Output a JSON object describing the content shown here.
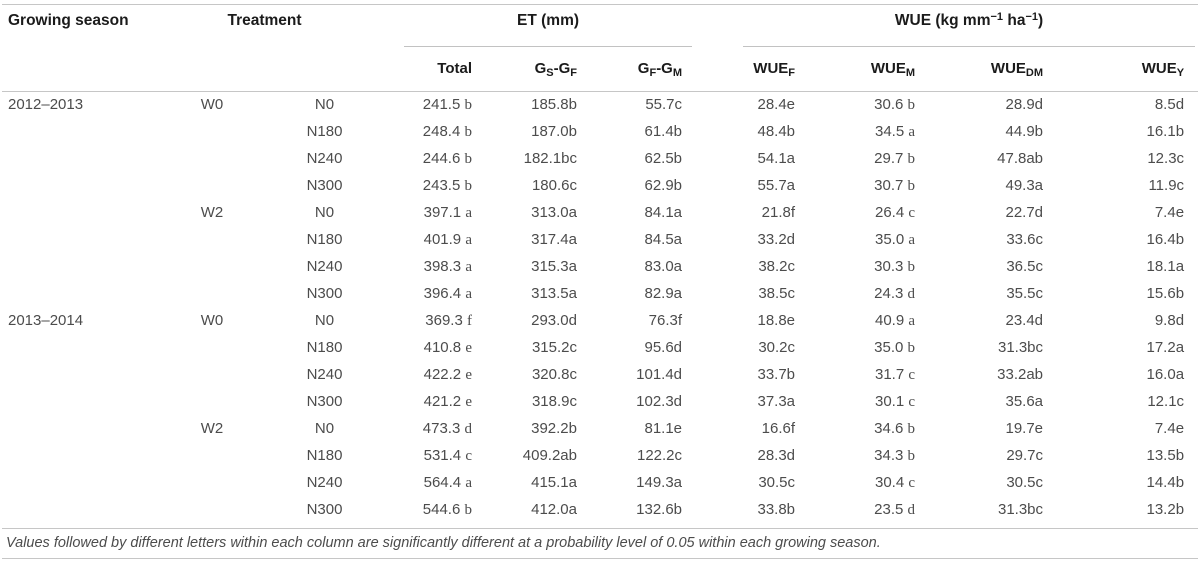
{
  "table": {
    "col_headers": {
      "growing_season": "Growing season",
      "treatment": "Treatment",
      "et_group": "ET (mm)",
      "wue_group": "WUE (kg mm^−1^ ha^−1^)",
      "sub": [
        "Total",
        "G_S_-G_F_",
        "G_F_-G_M_",
        "WUE_F_",
        "WUE_M_",
        "WUE_DM_",
        "WUE_Y_"
      ]
    },
    "rows": [
      {
        "season": "2012–2013",
        "w": "W0",
        "n": "N0",
        "values": [
          "241.5 b",
          "185.8b",
          "55.7c",
          "28.4e",
          "30.6 b",
          "28.9d",
          "8.5d"
        ]
      },
      {
        "season": "",
        "w": "",
        "n": "N180",
        "values": [
          "248.4 b",
          "187.0b",
          "61.4b",
          "48.4b",
          "34.5 a",
          "44.9b",
          "16.1b"
        ]
      },
      {
        "season": "",
        "w": "",
        "n": "N240",
        "values": [
          "244.6 b",
          "182.1bc",
          "62.5b",
          "54.1a",
          "29.7 b",
          "47.8ab",
          "12.3c"
        ]
      },
      {
        "season": "",
        "w": "",
        "n": "N300",
        "values": [
          "243.5 b",
          "180.6c",
          "62.9b",
          "55.7a",
          "30.7 b",
          "49.3a",
          "11.9c"
        ]
      },
      {
        "season": "",
        "w": "W2",
        "n": "N0",
        "values": [
          "397.1 a",
          "313.0a",
          "84.1a",
          "21.8f",
          "26.4 c",
          "22.7d",
          "7.4e"
        ]
      },
      {
        "season": "",
        "w": "",
        "n": "N180",
        "values": [
          "401.9 a",
          "317.4a",
          "84.5a",
          "33.2d",
          "35.0 a",
          "33.6c",
          "16.4b"
        ]
      },
      {
        "season": "",
        "w": "",
        "n": "N240",
        "values": [
          "398.3 a",
          "315.3a",
          "83.0a",
          "38.2c",
          "30.3 b",
          "36.5c",
          "18.1a"
        ]
      },
      {
        "season": "",
        "w": "",
        "n": "N300",
        "values": [
          "396.4 a",
          "313.5a",
          "82.9a",
          "38.5c",
          "24.3 d",
          "35.5c",
          "15.6b"
        ]
      },
      {
        "season": "2013–2014",
        "w": "W0",
        "n": "N0",
        "values": [
          "369.3 f",
          "293.0d",
          "76.3f",
          "18.8e",
          "40.9 a",
          "23.4d",
          "9.8d"
        ]
      },
      {
        "season": "",
        "w": "",
        "n": "N180",
        "values": [
          "410.8 e",
          "315.2c",
          "95.6d",
          "30.2c",
          "35.0 b",
          "31.3bc",
          "17.2a"
        ]
      },
      {
        "season": "",
        "w": "",
        "n": "N240",
        "values": [
          "422.2 e",
          "320.8c",
          "101.4d",
          "33.7b",
          "31.7 c",
          "33.2ab",
          "16.0a"
        ]
      },
      {
        "season": "",
        "w": "",
        "n": "N300",
        "values": [
          "421.2 e",
          "318.9c",
          "102.3d",
          "37.3a",
          "30.1 c",
          "35.6a",
          "12.1c"
        ]
      },
      {
        "season": "",
        "w": "W2",
        "n": "N0",
        "values": [
          "473.3 d",
          "392.2b",
          "81.1e",
          "16.6f",
          "34.6 b",
          "19.7e",
          "7.4e"
        ]
      },
      {
        "season": "",
        "w": "",
        "n": "N180",
        "values": [
          "531.4 c",
          "409.2ab",
          "122.2c",
          "28.3d",
          "34.3 b",
          "29.7c",
          "13.5b"
        ]
      },
      {
        "season": "",
        "w": "",
        "n": "N240",
        "values": [
          "564.4 a",
          "415.1a",
          "149.3a",
          "30.5c",
          "30.4 c",
          "30.5c",
          "14.4b"
        ]
      },
      {
        "season": "",
        "w": "",
        "n": "N300",
        "values": [
          "544.6 b",
          "412.0a",
          "132.6b",
          "33.8b",
          "23.5 d",
          "31.3bc",
          "13.2b"
        ]
      }
    ],
    "footnote": "Values followed by different letters within each column are significantly different at a probability level of 0.05 within each growing season."
  },
  "colors": {
    "rule": "#c6c6c6",
    "header_text": "#1b1b1b",
    "body_text": "#4c4c4c"
  }
}
